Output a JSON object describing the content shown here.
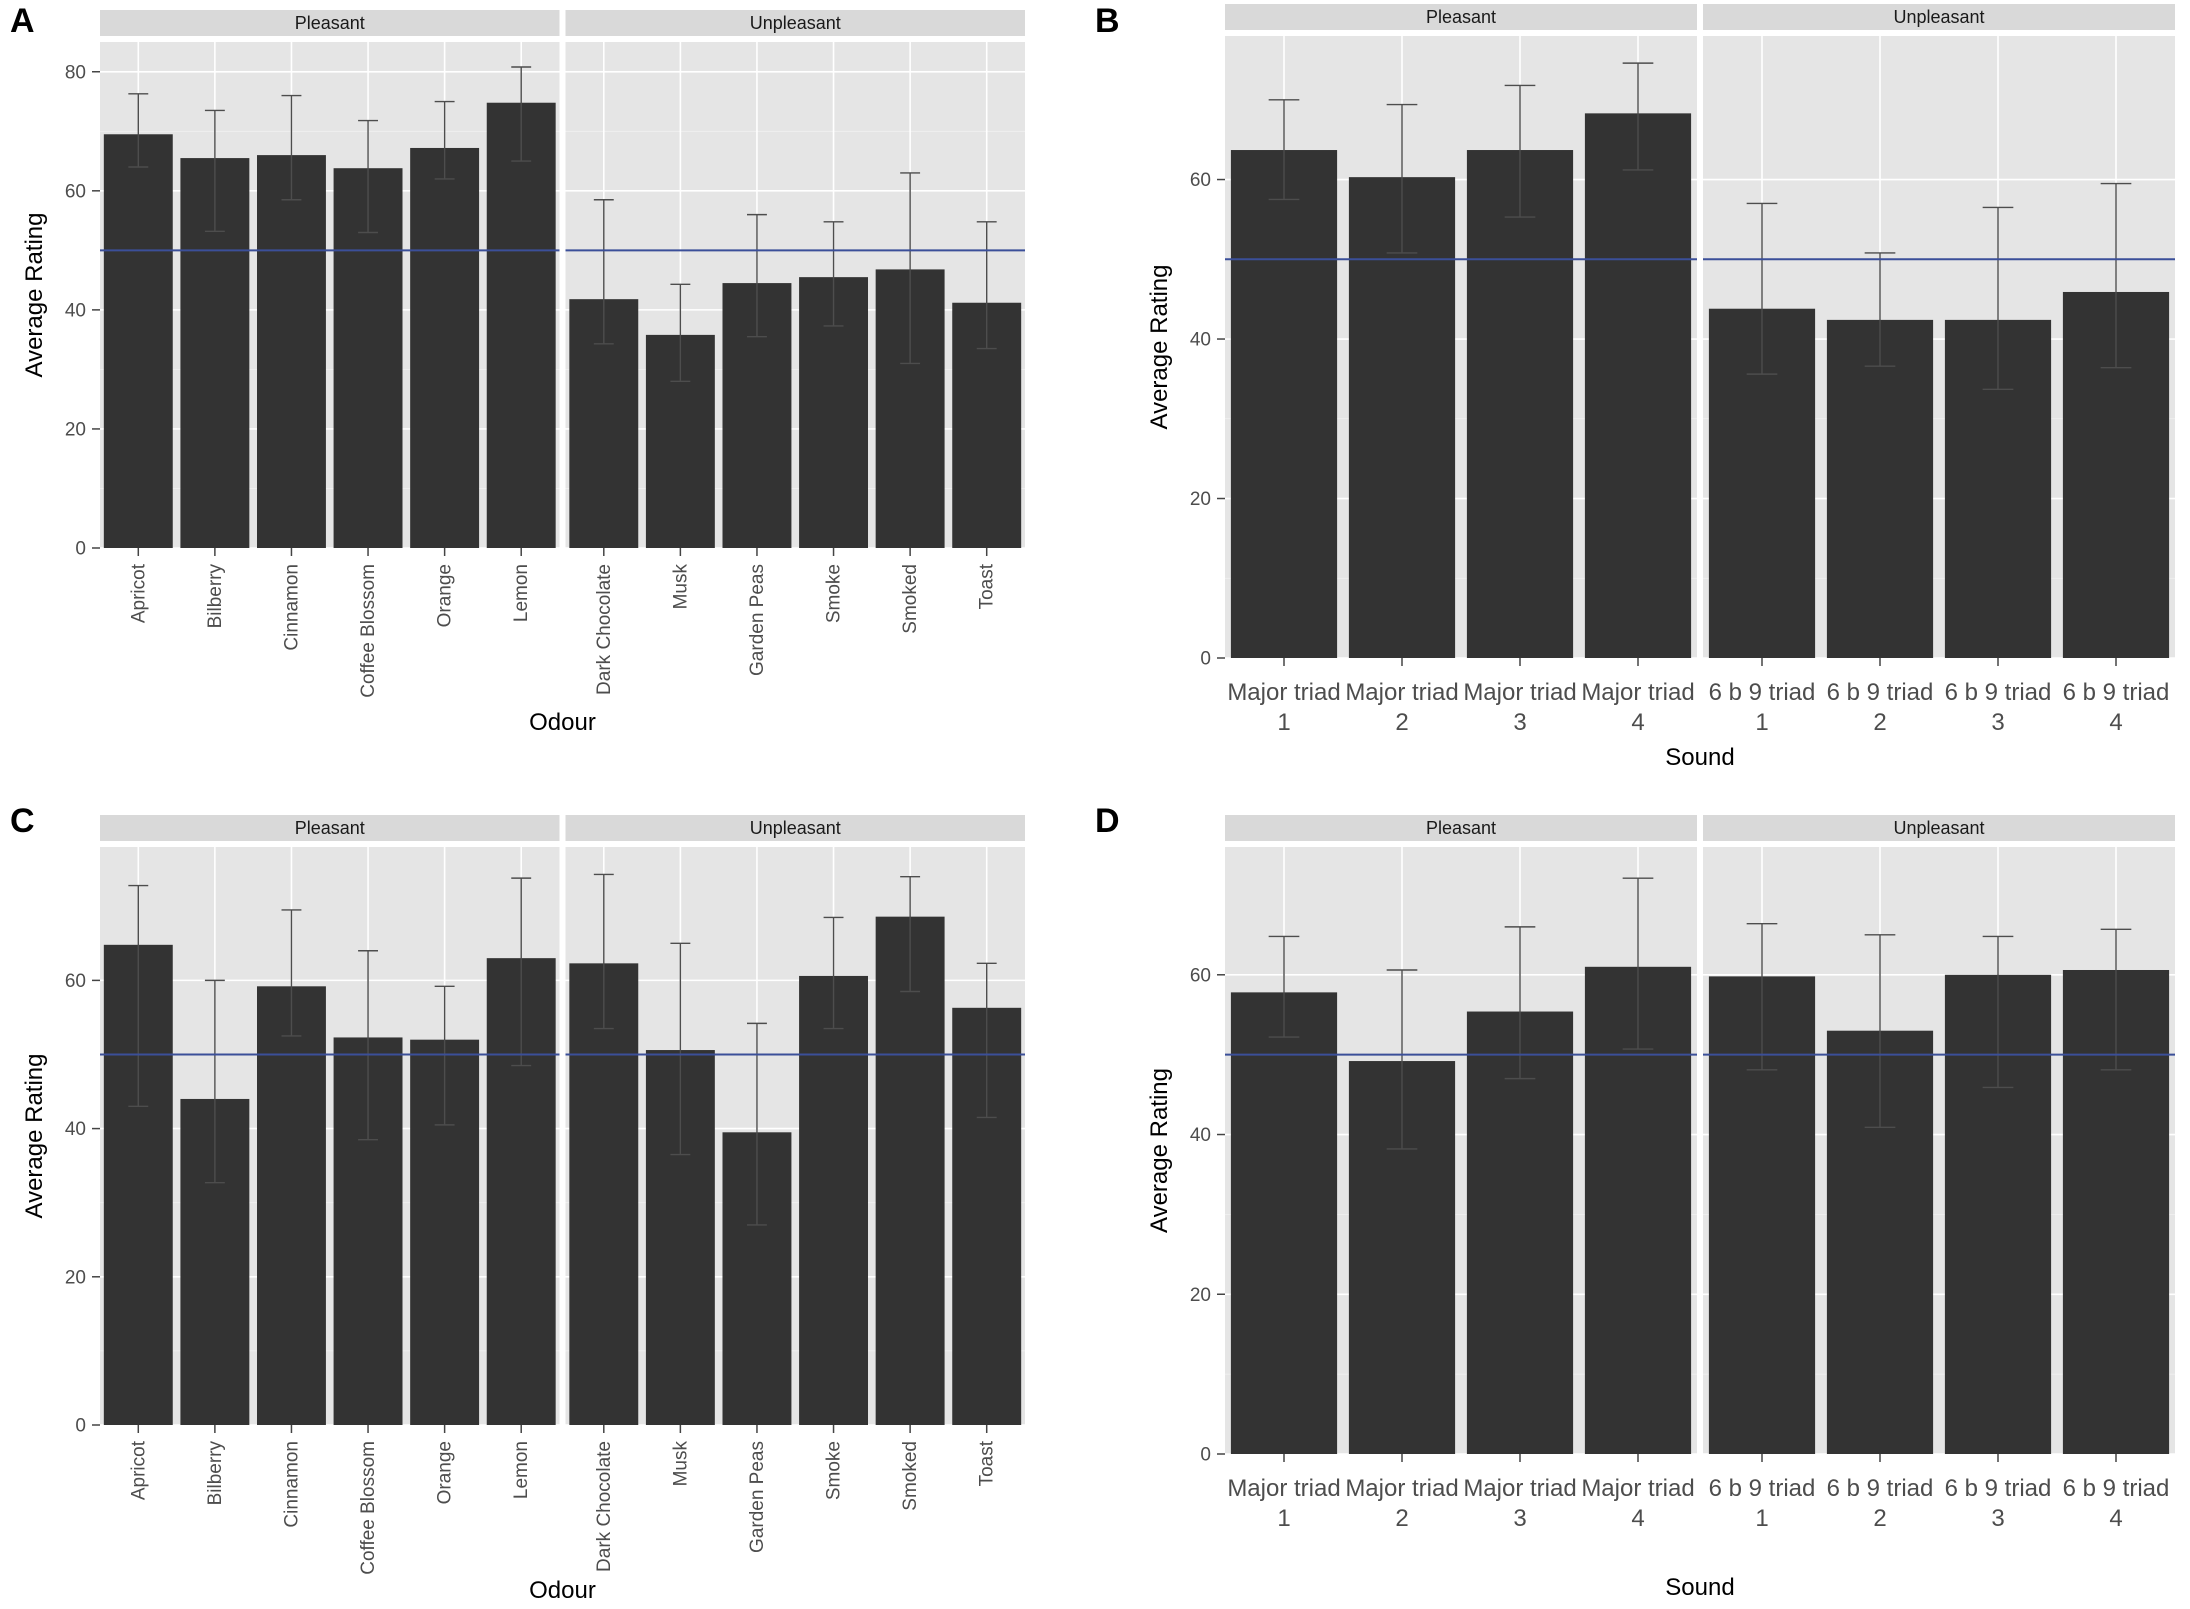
{
  "chart_data": [
    {
      "panel_label": "A",
      "type": "bar",
      "xlabel": "Odour",
      "ylabel": "Average Rating",
      "ylim": [
        0,
        85
      ],
      "yticks": [
        0,
        20,
        40,
        60,
        80
      ],
      "reference_line": 50,
      "facets": [
        "Pleasant",
        "Unpleasant"
      ],
      "categories": [
        "Apricot",
        "Bilberry",
        "Cinnamon",
        "Coffee Blossom",
        "Orange",
        "Lemon",
        "Dark Chocolate",
        "Musk",
        "Garden Peas",
        "Smoke",
        "Smoked",
        "Toast"
      ],
      "facet_of": [
        0,
        0,
        0,
        0,
        0,
        0,
        1,
        1,
        1,
        1,
        1,
        1
      ],
      "values": [
        69.5,
        65.5,
        66,
        63.8,
        67.2,
        74.8,
        41.8,
        35.8,
        44.5,
        45.5,
        46.8,
        41.2
      ],
      "err_low": [
        64,
        53.2,
        58.5,
        53,
        62,
        65,
        34.3,
        28,
        35.5,
        37.3,
        31,
        33.5
      ],
      "err_high": [
        76.3,
        73.5,
        76,
        71.8,
        75,
        80.8,
        58.5,
        44.3,
        56,
        54.8,
        63,
        54.8
      ]
    },
    {
      "panel_label": "B",
      "type": "bar",
      "xlabel": "Sound",
      "ylabel": "Average Rating",
      "ylim": [
        0,
        78
      ],
      "yticks": [
        0,
        20,
        40,
        60
      ],
      "reference_line": 50,
      "facets": [
        "Pleasant",
        "Unpleasant"
      ],
      "categories": [
        "Major triad 1",
        "Major triad 2",
        "Major triad 3",
        "Major triad 4",
        "6 b 9 triad 1",
        "6 b 9 triad 2",
        "6 b 9 triad 3",
        "6 b 9 triad 4"
      ],
      "facet_of": [
        0,
        0,
        0,
        0,
        1,
        1,
        1,
        1
      ],
      "values": [
        63.7,
        60.3,
        63.7,
        68.3,
        43.8,
        42.4,
        42.4,
        45.9
      ],
      "err_low": [
        57.5,
        50.8,
        55.3,
        61.2,
        35.6,
        36.6,
        33.7,
        36.4
      ],
      "err_high": [
        70,
        69.4,
        71.8,
        74.6,
        57,
        50.8,
        56.5,
        59.5
      ]
    },
    {
      "panel_label": "C",
      "type": "bar",
      "xlabel": "Odour",
      "ylabel": "Average Rating",
      "ylim": [
        0,
        78
      ],
      "yticks": [
        0,
        20,
        40,
        60
      ],
      "reference_line": 50,
      "facets": [
        "Pleasant",
        "Unpleasant"
      ],
      "categories": [
        "Apricot",
        "Bilberry",
        "Cinnamon",
        "Coffee Blossom",
        "Orange",
        "Lemon",
        "Dark Chocolate",
        "Musk",
        "Garden Peas",
        "Smoke",
        "Smoked",
        "Toast"
      ],
      "facet_of": [
        0,
        0,
        0,
        0,
        0,
        0,
        1,
        1,
        1,
        1,
        1,
        1
      ],
      "values": [
        64.8,
        44,
        59.2,
        52.3,
        52,
        63,
        62.3,
        50.6,
        39.5,
        60.6,
        68.6,
        56.3
      ],
      "err_low": [
        43,
        32.7,
        52.5,
        38.5,
        40.5,
        48.5,
        53.5,
        36.5,
        27,
        53.5,
        58.5,
        41.5
      ],
      "err_high": [
        72.8,
        60,
        69.5,
        64,
        59.2,
        73.8,
        74.3,
        65,
        54.2,
        68.5,
        74,
        62.3
      ]
    },
    {
      "panel_label": "D",
      "type": "bar",
      "xlabel": "Sound",
      "ylabel": "Average Rating",
      "ylim": [
        0,
        76
      ],
      "yticks": [
        0,
        20,
        40,
        60
      ],
      "reference_line": 50,
      "facets": [
        "Pleasant",
        "Unpleasant"
      ],
      "categories": [
        "Major triad 1",
        "Major triad 2",
        "Major triad 3",
        "Major triad 4",
        "6 b 9 triad 1",
        "6 b 9 triad 2",
        "6 b 9 triad 3",
        "6 b 9 triad 4"
      ],
      "facet_of": [
        0,
        0,
        0,
        0,
        1,
        1,
        1,
        1
      ],
      "values": [
        57.8,
        49.2,
        55.4,
        61,
        59.8,
        53,
        60,
        60.6
      ],
      "err_low": [
        52.2,
        38.2,
        47,
        50.7,
        48.1,
        40.9,
        45.9,
        48.1
      ],
      "err_high": [
        64.8,
        60.6,
        66,
        72.1,
        66.4,
        65,
        64.8,
        65.7
      ]
    }
  ]
}
